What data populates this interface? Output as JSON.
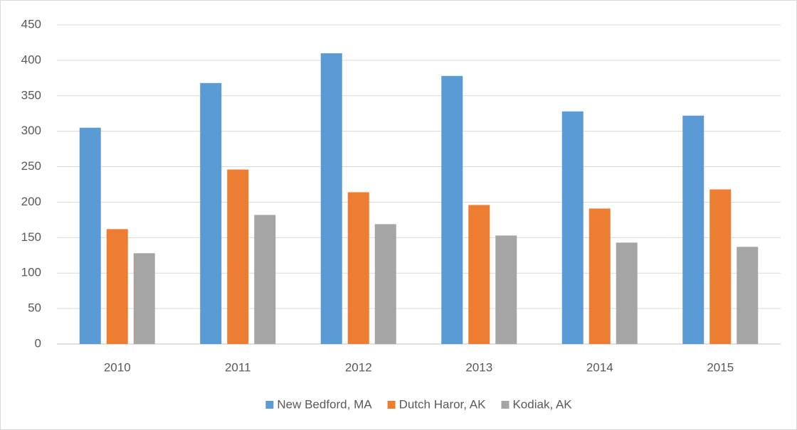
{
  "chart_data": {
    "type": "bar",
    "categories": [
      "2010",
      "2011",
      "2012",
      "2013",
      "2014",
      "2015"
    ],
    "series": [
      {
        "name": "New Bedford, MA",
        "color": "#5b9bd5",
        "values": [
          305,
          368,
          410,
          378,
          328,
          322
        ]
      },
      {
        "name": "Dutch Haror, AK",
        "color": "#ed7d31",
        "values": [
          162,
          246,
          214,
          196,
          191,
          218
        ]
      },
      {
        "name": "Kodiak, AK",
        "color": "#a5a5a5",
        "values": [
          128,
          182,
          169,
          153,
          143,
          137
        ]
      }
    ],
    "ylim": [
      0,
      450
    ],
    "yticks": [
      0,
      50,
      100,
      150,
      200,
      250,
      300,
      350,
      400,
      450
    ],
    "grid": true,
    "legend": "bottom"
  }
}
